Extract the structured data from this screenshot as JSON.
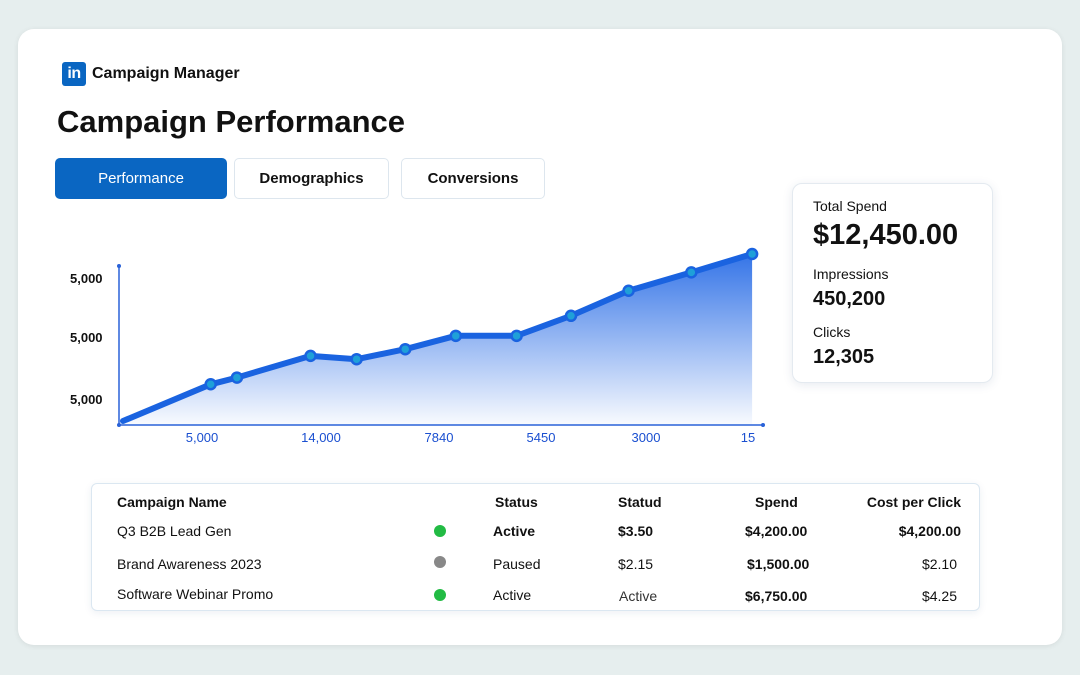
{
  "brand": {
    "logo_text": "in",
    "name": "Campaign Manager"
  },
  "page_title": "Campaign Performance",
  "tabs": [
    {
      "label": "Performance",
      "active": true
    },
    {
      "label": "Demographics",
      "active": false
    },
    {
      "label": "Conversions",
      "active": false
    }
  ],
  "stats": {
    "total_spend_label": "Total Spend",
    "total_spend_value": "$12,450.00",
    "impressions_label": "Impressions",
    "impressions_value": "450,200",
    "clicks_label": "Clicks",
    "clicks_value": "12,305"
  },
  "chart_data": {
    "type": "area",
    "y_tick_labels": [
      "5,000",
      "5,000",
      "5,000"
    ],
    "x_tick_labels": [
      "5,000",
      "14,000",
      "7840",
      "5450",
      "3000",
      "15"
    ],
    "values": [
      0,
      0.22,
      0.26,
      0.39,
      0.37,
      0.43,
      0.51,
      0.51,
      0.63,
      0.78,
      0.89,
      1.0
    ],
    "x_positions": [
      0,
      0.137,
      0.178,
      0.293,
      0.365,
      0.441,
      0.52,
      0.615,
      0.7,
      0.79,
      0.888,
      0.983
    ],
    "color": "#1a63e0"
  },
  "table": {
    "headers": [
      "Campaign Name",
      "Status",
      "Statud",
      "Spend",
      "Cost per Click"
    ],
    "rows": [
      {
        "name": "Q3 B2B Lead Gen",
        "status_color": "#22bb44",
        "status": "Active",
        "statud": "$3.50",
        "spend": "$4,200.00",
        "cpc": "$4,200.00",
        "emphasis": true
      },
      {
        "name": "Brand Awareness 2023",
        "status_color": "#888888",
        "status": "Paused",
        "statud": "$2.15",
        "spend": "$1,500.00",
        "cpc": "$2.10",
        "emphasis": false
      },
      {
        "name": "Software Webinar Promo",
        "status_color": "#22bb44",
        "status": "Active",
        "statud": "Active",
        "spend": "$6,750.00",
        "cpc": "$4.25",
        "emphasis": false
      }
    ]
  }
}
